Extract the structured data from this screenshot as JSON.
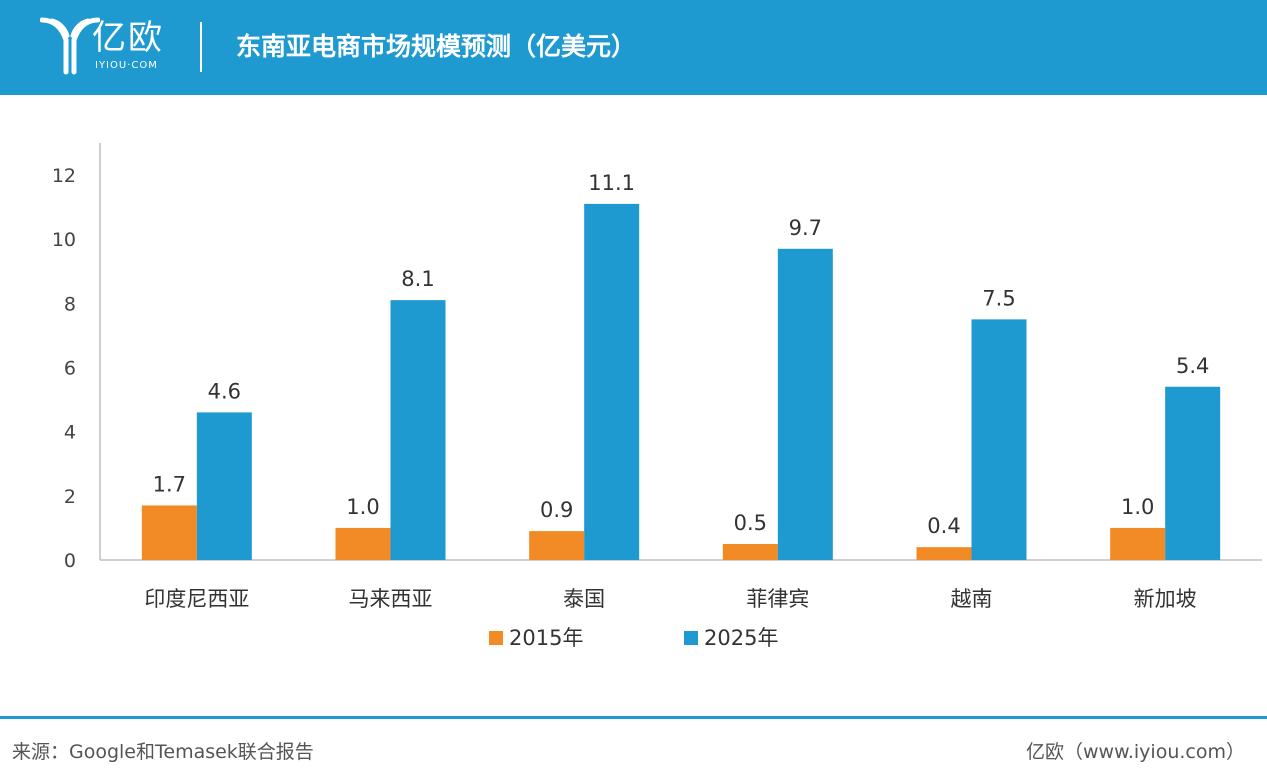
{
  "header": {
    "logo_text": "亿欧",
    "logo_sub": "IYIOU·COM",
    "title": "东南亚电商市场规模预测（亿美元）"
  },
  "chart_data": {
    "type": "bar",
    "title": "东南亚电商市场规模预测（亿美元）",
    "xlabel": "",
    "ylabel": "",
    "ylim": [
      0,
      12
    ],
    "yticks": [
      0,
      2,
      4,
      6,
      8,
      10,
      12
    ],
    "grid": false,
    "legend_position": "bottom",
    "categories": [
      "印度尼西亚",
      "马来西亚",
      "泰国",
      "菲律宾",
      "越南",
      "新加坡"
    ],
    "series": [
      {
        "name": "2015年",
        "color": "#f28a26",
        "values": [
          1.7,
          1.0,
          0.9,
          0.5,
          0.4,
          1.0
        ],
        "labels": [
          "1.7",
          "1.0",
          "0.9",
          "0.5",
          "0.4",
          "1.0"
        ]
      },
      {
        "name": "2025年",
        "color": "#1f9ad1",
        "values": [
          4.6,
          8.1,
          11.1,
          9.7,
          7.5,
          5.4
        ],
        "labels": [
          "4.6",
          "8.1",
          "11.1",
          "9.7",
          "7.5",
          "5.4"
        ]
      }
    ]
  },
  "footer": {
    "source": "来源：Google和Temasek联合报告",
    "site": "亿欧（www.iyiou.com）"
  },
  "icons": {
    "logo": "iyiou-logo-icon"
  }
}
